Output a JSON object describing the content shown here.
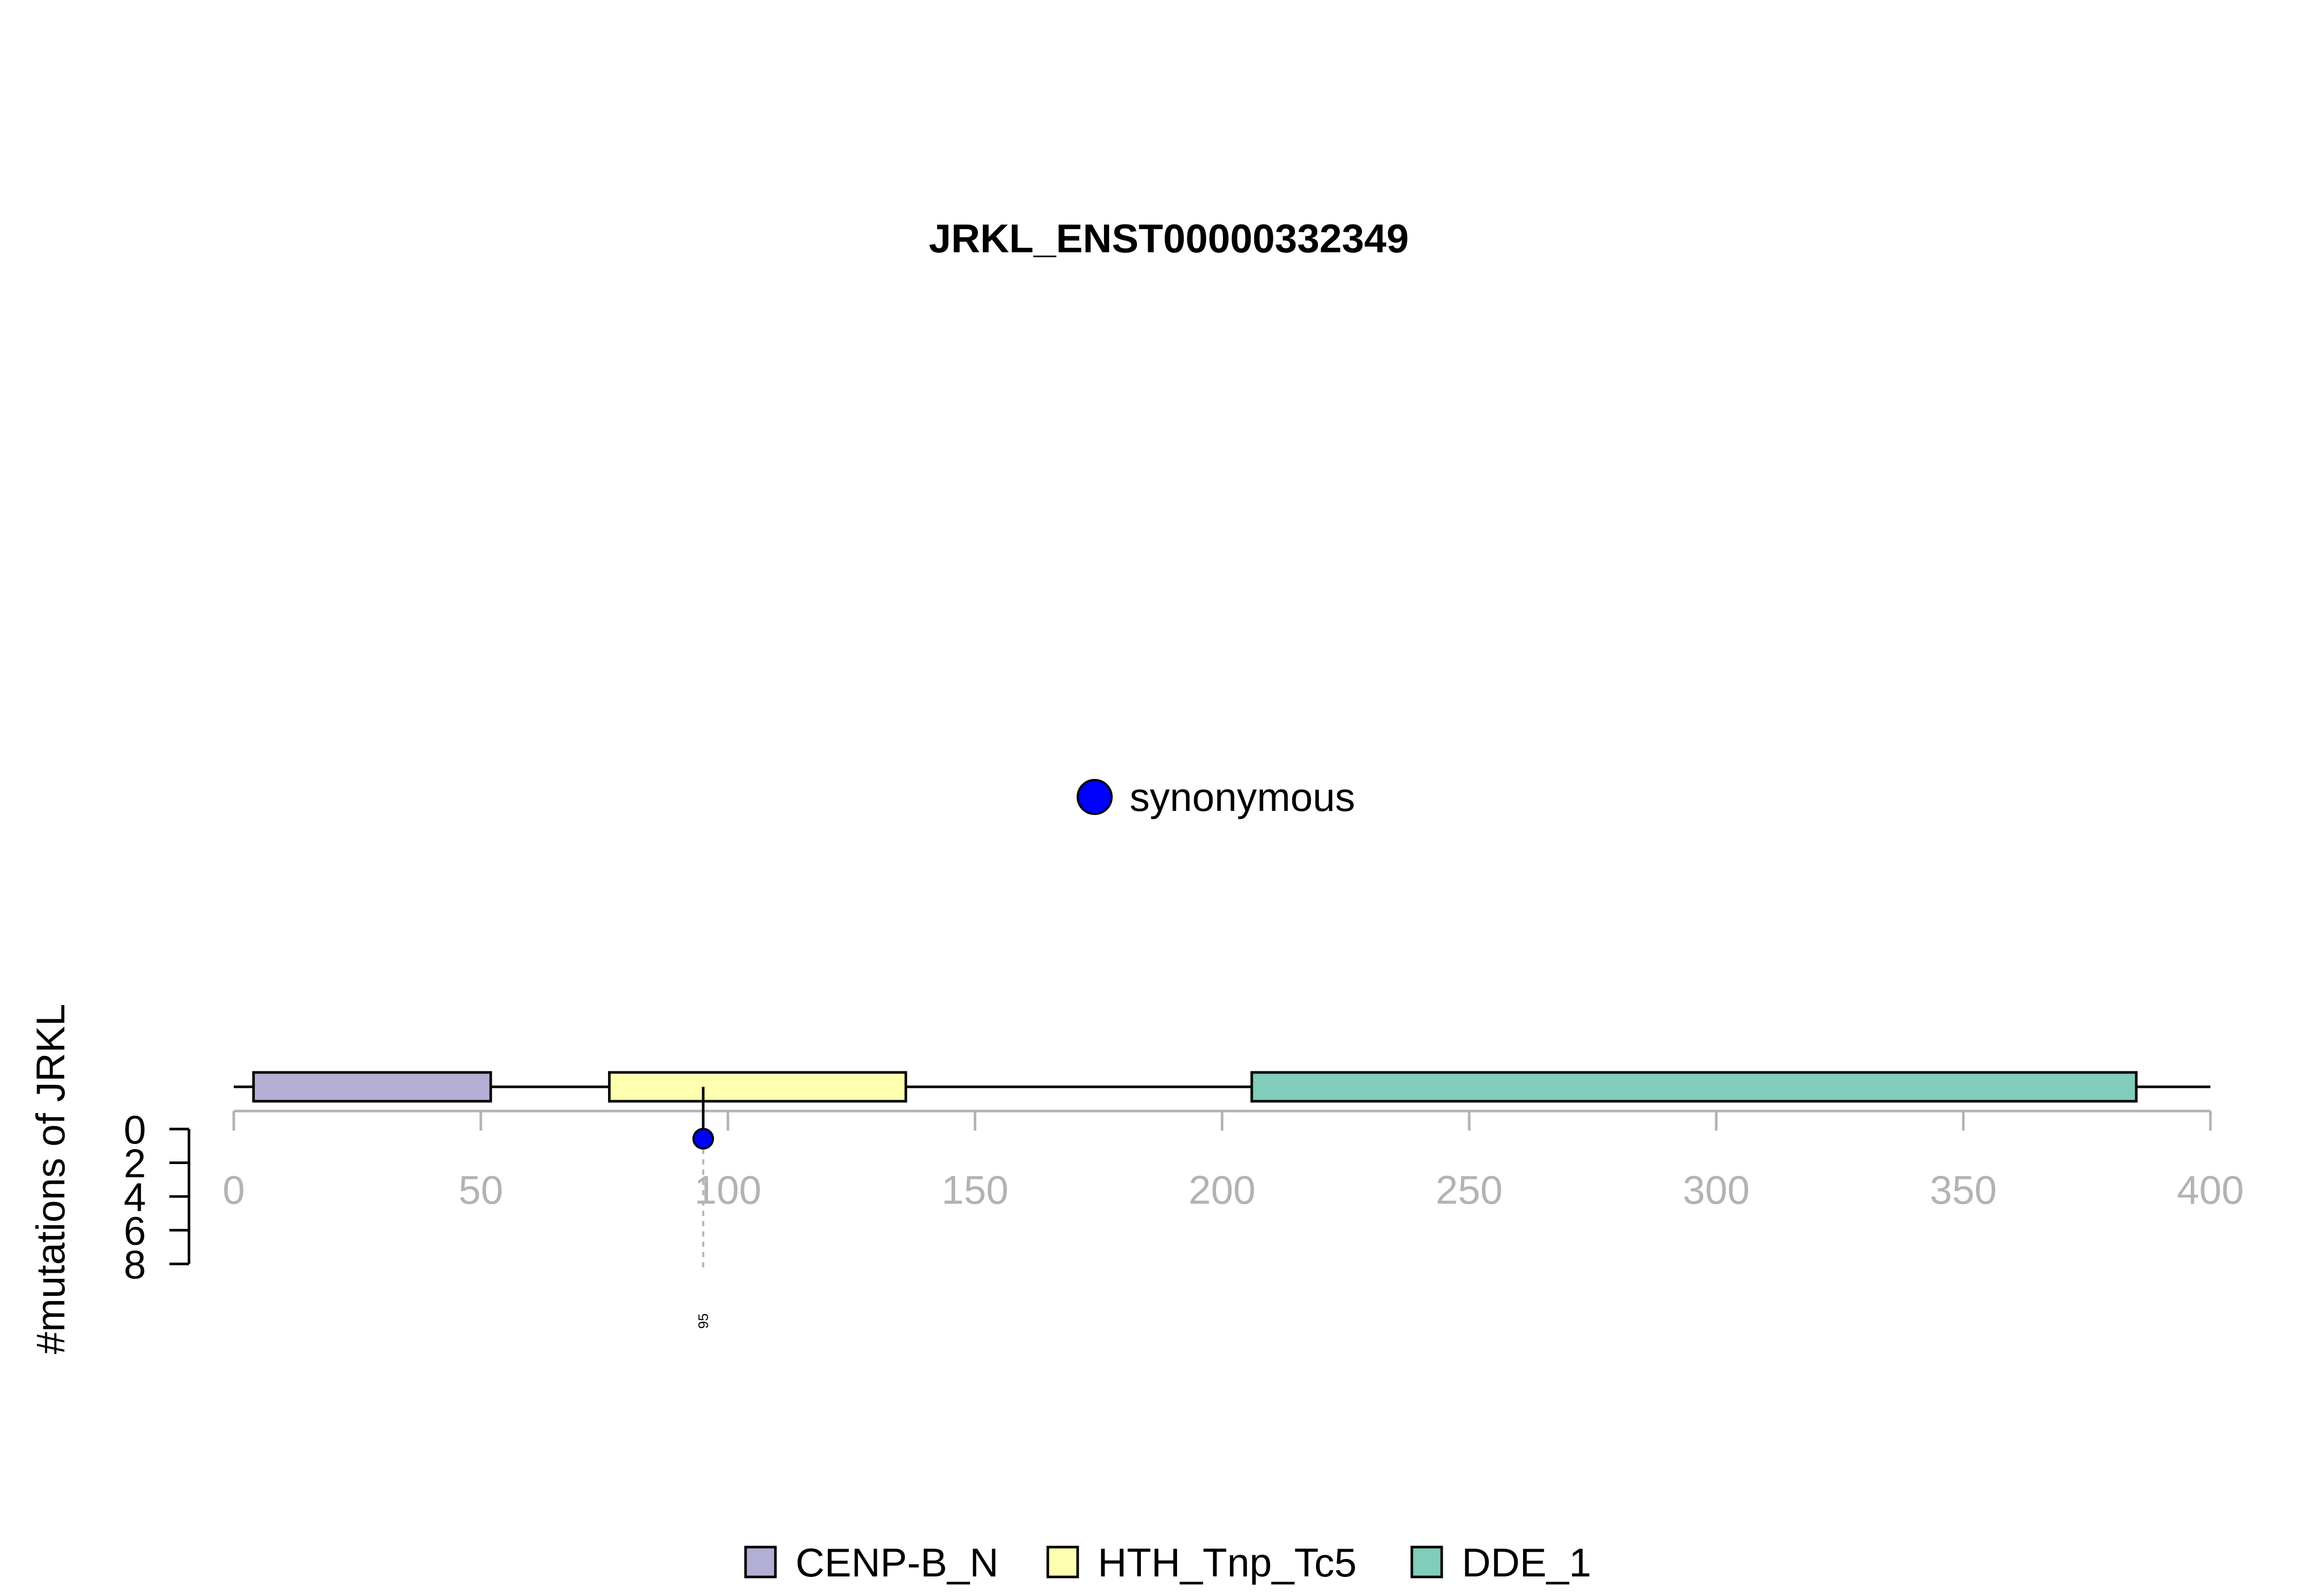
{
  "chart_data": {
    "type": "lollipop",
    "title": "JRKL_ENST00000332349",
    "ylabel": "#mutations of JRKL",
    "x_axis": {
      "range": [
        0,
        400
      ],
      "ticks": [
        0,
        50,
        100,
        150,
        200,
        250,
        300,
        350,
        400
      ]
    },
    "y_axis": {
      "range": [
        0,
        8
      ],
      "ticks": [
        0,
        2,
        4,
        6,
        8
      ],
      "direction": "downward"
    },
    "protein_length": 400,
    "domains": [
      {
        "name": "CENP-B_N",
        "start": 4,
        "end": 52,
        "color": "#b3aed3"
      },
      {
        "name": "HTH_Tnp_Tc5",
        "start": 76,
        "end": 136,
        "color": "#ffffb0"
      },
      {
        "name": "DDE_1",
        "start": 206,
        "end": 385,
        "color": "#80cdbb"
      }
    ],
    "mutations": [
      {
        "position": 95,
        "count": 1,
        "type": "synonymous",
        "label": "95",
        "color": "#0000ff"
      }
    ],
    "mutation_legend": [
      {
        "label": "synonymous",
        "color": "#0000ff"
      }
    ],
    "domain_legend": [
      "CENP-B_N",
      "HTH_Tnp_Tc5",
      "DDE_1"
    ],
    "legend_placement": "bottom-center"
  }
}
